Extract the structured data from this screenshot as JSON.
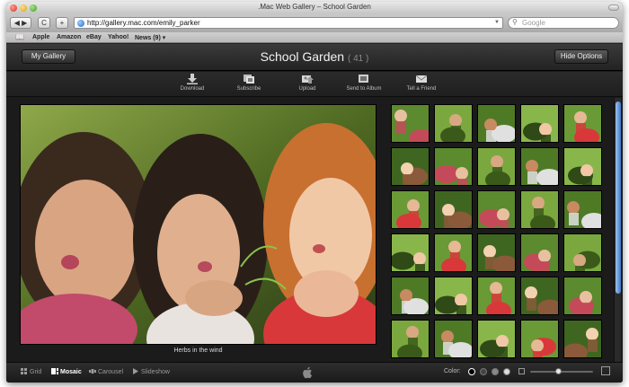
{
  "window": {
    "title": ".Mac Web Gallery – School Garden"
  },
  "toolbar": {
    "back_glyph": "◀ ▶",
    "reload_glyph": "C",
    "add_glyph": "+",
    "url": "http://gallery.mac.com/emily_parker",
    "search_placeholder": "Google"
  },
  "bookmarks": [
    "Apple",
    "Amazon",
    "eBay",
    "Yahoo!",
    "News (9) ▾"
  ],
  "gallery": {
    "my_gallery_label": "My Gallery",
    "title": "School Garden",
    "count": "( 41 )",
    "hide_options_label": "Hide Options"
  },
  "actions": [
    {
      "label": "Download",
      "icon": "download-icon"
    },
    {
      "label": "Subscribe",
      "icon": "subscribe-icon"
    },
    {
      "label": "Upload",
      "icon": "upload-icon"
    },
    {
      "label": "Send to Album",
      "icon": "send-to-album-icon"
    },
    {
      "label": "Tell a Friend",
      "icon": "mail-icon"
    }
  ],
  "main_photo": {
    "caption": "Herbs in the wind"
  },
  "views": [
    {
      "label": "Grid",
      "active": false,
      "icon": "grid-icon"
    },
    {
      "label": "Mosaic",
      "active": true,
      "icon": "mosaic-icon"
    },
    {
      "label": "Carousel",
      "active": false,
      "icon": "carousel-icon"
    },
    {
      "label": "Slideshow",
      "active": false,
      "icon": "slideshow-icon"
    }
  ],
  "color": {
    "label": "Color:",
    "swatches": [
      "#000000",
      "#444444",
      "#888888",
      "#dddddd"
    ],
    "selected": 0
  },
  "zoom": {
    "level": 0.45
  },
  "colors": {
    "accent_blue": "#3f78c9",
    "chrome_dark": "#1b1b1b"
  }
}
